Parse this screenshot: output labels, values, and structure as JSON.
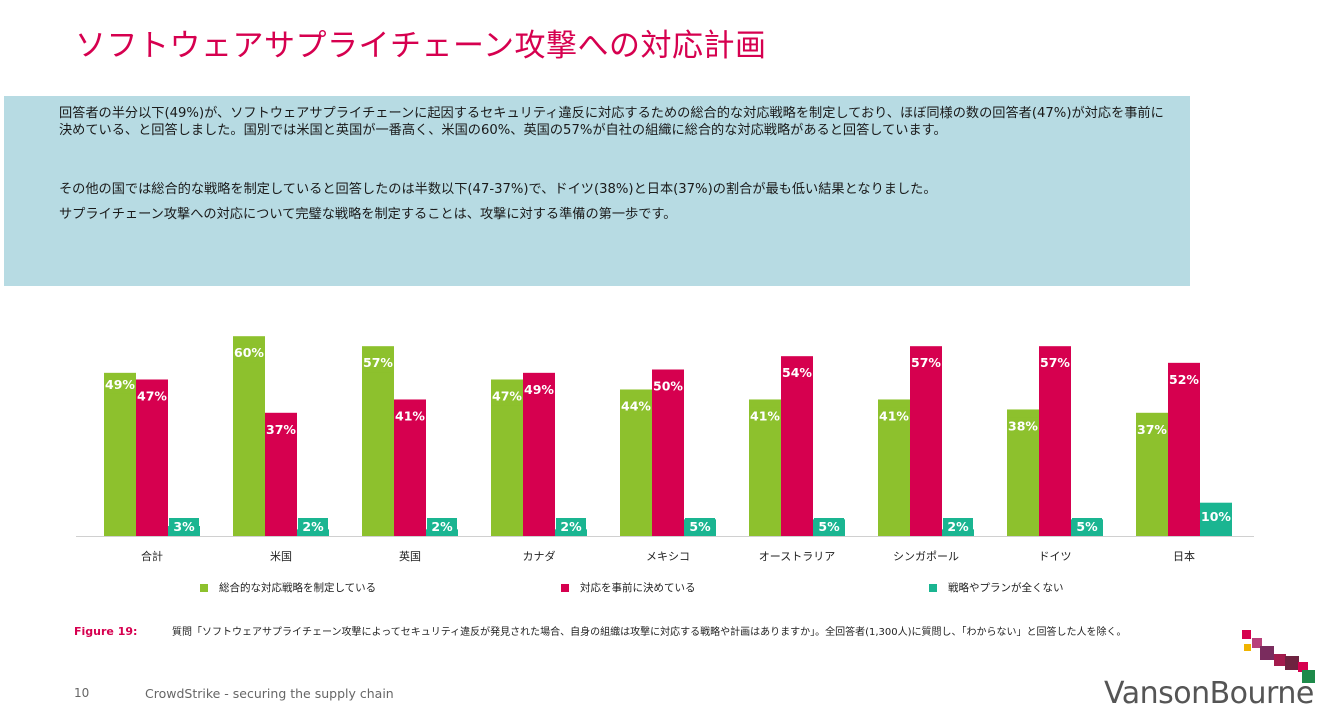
{
  "title": "ソフトウェアサプライチェーン攻撃への対応計画",
  "summary": {
    "p1": "回答者の半分以下(49%)が、ソフトウェアサプライチェーンに起因するセキュリティ違反に対応するための総合的な対応戦略を制定しており、ほぼ同様の数の回答者(47%)が対応を事前に決めている、と回答しました。国別では米国と英国が一番高く、米国の60%、英国の57%が自社の組織に総合的な対応戦略があると回答しています。",
    "p2": "その他の国では総合的な戦略を制定していると回答したのは半数以下(47-37%)で、ドイツ(38%)と日本(37%)の割合が最も低い結果となりました。",
    "p3": "サプライチェーン攻撃への対応について完璧な戦略を制定することは、攻撃に対する準備の第一歩です。"
  },
  "chart_data": {
    "type": "bar",
    "categories": [
      "合計",
      "米国",
      "英国",
      "カナダ",
      "メキシコ",
      "オーストラリア",
      "シンガポール",
      "ドイツ",
      "日本"
    ],
    "series": [
      {
        "name": "総合的な対応戦略を制定している",
        "color": "#8dc12d",
        "values": [
          49,
          60,
          57,
          47,
          44,
          41,
          41,
          38,
          37
        ]
      },
      {
        "name": "対応を事前に決めている",
        "color": "#d6004f",
        "values": [
          47,
          37,
          41,
          49,
          50,
          54,
          57,
          57,
          52
        ]
      },
      {
        "name": "戦略やプランが全くない",
        "color": "#1ab591",
        "values": [
          3,
          2,
          2,
          2,
          5,
          5,
          2,
          5,
          10
        ]
      }
    ],
    "value_suffix": "%",
    "ylim": [
      0,
      60
    ],
    "grid": false,
    "legend_position": "bottom"
  },
  "caption": {
    "label": "Figure 19:",
    "text": "質問「ソフトウェアサプライチェーン攻撃によってセキュリティ違反が発見された場合、自身の組織は攻撃に対応する戦略や計画はありますか」。全回答者(1,300人)に質問し、「わからない」と回答した人を除く。"
  },
  "footer": {
    "page": "10",
    "text": "CrowdStrike - securing the supply chain"
  },
  "logo": {
    "text": "VansonBourne"
  }
}
